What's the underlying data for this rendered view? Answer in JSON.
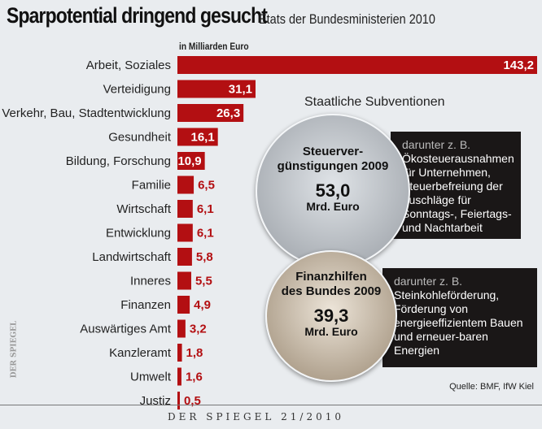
{
  "title": "Sparpotential dringend gesucht",
  "subtitle": "Etats der Bundesministerien 2010",
  "chart_data": {
    "type": "bar",
    "orientation": "horizontal",
    "unit": "in Milliarden Euro",
    "categories": [
      "Arbeit, Soziales",
      "Verteidigung",
      "Verkehr, Bau, Stadtentwicklung",
      "Gesundheit",
      "Bildung, Forschung",
      "Familie",
      "Wirtschaft",
      "Entwicklung",
      "Landwirtschaft",
      "Inneres",
      "Finanzen",
      "Auswärtiges Amt",
      "Kanzleramt",
      "Umwelt",
      "Justiz"
    ],
    "values": [
      143.2,
      31.1,
      26.3,
      16.1,
      10.9,
      6.5,
      6.1,
      6.1,
      5.8,
      5.5,
      4.9,
      3.2,
      1.8,
      1.6,
      0.5
    ],
    "labels": [
      "143,2",
      "31,1",
      "26,3",
      "16,1",
      "10,9",
      "6,5",
      "6,1",
      "6,1",
      "5,8",
      "5,5",
      "4,9",
      "3,2",
      "1,8",
      "1,6",
      "0,5"
    ],
    "bar_color": "#b30f12"
  },
  "subsidies": {
    "title": "Staatliche Subventionen",
    "items": [
      {
        "title1": "Steuerver-",
        "title2": "günstigungen 2009",
        "value": "53,0",
        "unit": "Mrd. Euro",
        "pre": "darunter z. B.",
        "text": "Ökosteuerausnahmen für Unternehmen, Steuerbefreiung der Zuschläge für Sonntags-, Feiertags- und Nachtarbeit"
      },
      {
        "title1": "Finanzhilfen",
        "title2": "des Bundes 2009",
        "value": "39,3",
        "unit": "Mrd. Euro",
        "pre": "darunter z. B.",
        "text": "Steinkohleförderung, Förderung von energieeffizientem Bauen und erneuer-baren Energien"
      }
    ]
  },
  "source": "Quelle: BMF, IfW Kiel",
  "footer": "DER SPIEGEL 21/2010",
  "side_logo": "DER SPIEGEL"
}
